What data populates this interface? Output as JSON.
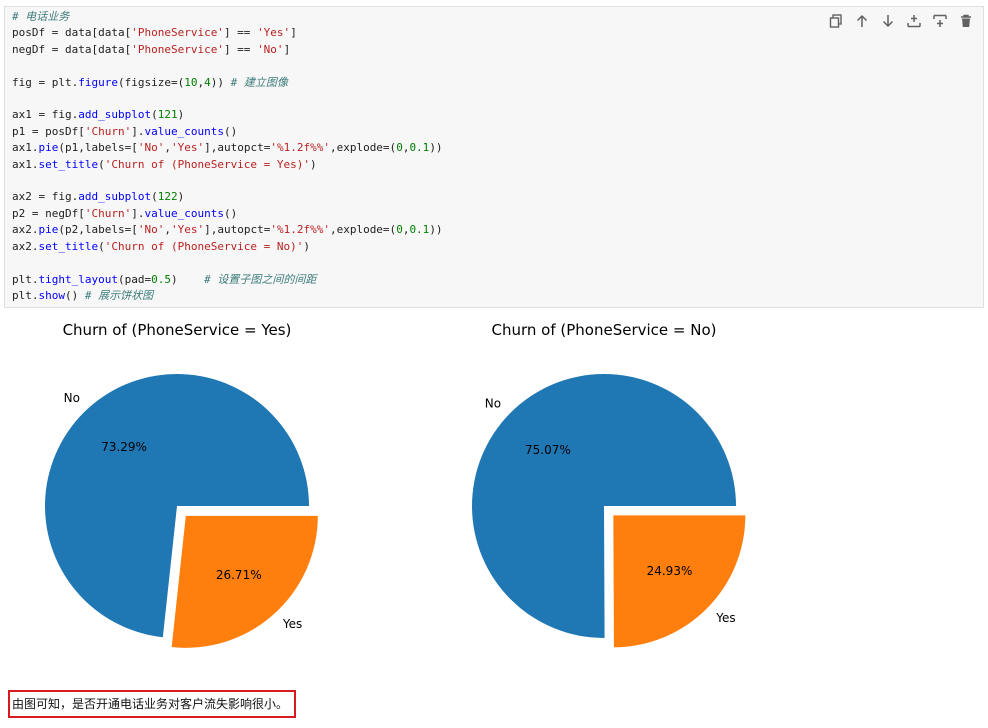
{
  "code_cell": {
    "lines": [
      [
        {
          "t": "# 电话业务",
          "c": "cm"
        }
      ],
      [
        {
          "t": "posDf = data[data["
        },
        {
          "t": "'PhoneService'",
          "c": "st"
        },
        {
          "t": "] == "
        },
        {
          "t": "'Yes'",
          "c": "st"
        },
        {
          "t": "]"
        }
      ],
      [
        {
          "t": "negDf = data[data["
        },
        {
          "t": "'PhoneService'",
          "c": "st"
        },
        {
          "t": "] == "
        },
        {
          "t": "'No'",
          "c": "st"
        },
        {
          "t": "]"
        }
      ],
      [],
      [
        {
          "t": "fig = plt."
        },
        {
          "t": "figure",
          "c": "fn"
        },
        {
          "t": "(figsize=("
        },
        {
          "t": "10",
          "c": "nu"
        },
        {
          "t": ","
        },
        {
          "t": "4",
          "c": "nu"
        },
        {
          "t": ")) "
        },
        {
          "t": "# 建立图像",
          "c": "cm"
        }
      ],
      [],
      [
        {
          "t": "ax1 = fig."
        },
        {
          "t": "add_subplot",
          "c": "fn"
        },
        {
          "t": "("
        },
        {
          "t": "121",
          "c": "nu"
        },
        {
          "t": ")"
        }
      ],
      [
        {
          "t": "p1 = posDf["
        },
        {
          "t": "'Churn'",
          "c": "st"
        },
        {
          "t": "]."
        },
        {
          "t": "value_counts",
          "c": "fn"
        },
        {
          "t": "()"
        }
      ],
      [
        {
          "t": "ax1."
        },
        {
          "t": "pie",
          "c": "fn"
        },
        {
          "t": "(p1,labels=["
        },
        {
          "t": "'No'",
          "c": "st"
        },
        {
          "t": ","
        },
        {
          "t": "'Yes'",
          "c": "st"
        },
        {
          "t": "],autopct="
        },
        {
          "t": "'%1.2f%%'",
          "c": "st"
        },
        {
          "t": ",explode=("
        },
        {
          "t": "0",
          "c": "nu"
        },
        {
          "t": ","
        },
        {
          "t": "0.1",
          "c": "nu"
        },
        {
          "t": "))"
        }
      ],
      [
        {
          "t": "ax1."
        },
        {
          "t": "set_title",
          "c": "fn"
        },
        {
          "t": "("
        },
        {
          "t": "'Churn of (PhoneService = Yes)'",
          "c": "st"
        },
        {
          "t": ")"
        }
      ],
      [],
      [
        {
          "t": "ax2 = fig."
        },
        {
          "t": "add_subplot",
          "c": "fn"
        },
        {
          "t": "("
        },
        {
          "t": "122",
          "c": "nu"
        },
        {
          "t": ")"
        }
      ],
      [
        {
          "t": "p2 = negDf["
        },
        {
          "t": "'Churn'",
          "c": "st"
        },
        {
          "t": "]."
        },
        {
          "t": "value_counts",
          "c": "fn"
        },
        {
          "t": "()"
        }
      ],
      [
        {
          "t": "ax2."
        },
        {
          "t": "pie",
          "c": "fn"
        },
        {
          "t": "(p2,labels=["
        },
        {
          "t": "'No'",
          "c": "st"
        },
        {
          "t": ","
        },
        {
          "t": "'Yes'",
          "c": "st"
        },
        {
          "t": "],autopct="
        },
        {
          "t": "'%1.2f%%'",
          "c": "st"
        },
        {
          "t": ",explode=("
        },
        {
          "t": "0",
          "c": "nu"
        },
        {
          "t": ","
        },
        {
          "t": "0.1",
          "c": "nu"
        },
        {
          "t": "))"
        }
      ],
      [
        {
          "t": "ax2."
        },
        {
          "t": "set_title",
          "c": "fn"
        },
        {
          "t": "("
        },
        {
          "t": "'Churn of (PhoneService = No)'",
          "c": "st"
        },
        {
          "t": ")"
        }
      ],
      [],
      [
        {
          "t": "plt."
        },
        {
          "t": "tight_layout",
          "c": "fn"
        },
        {
          "t": "(pad="
        },
        {
          "t": "0.5",
          "c": "nu"
        },
        {
          "t": ")    "
        },
        {
          "t": "# 设置子图之间的间距",
          "c": "cm"
        }
      ],
      [
        {
          "t": "plt."
        },
        {
          "t": "show",
          "c": "fn"
        },
        {
          "t": "() "
        },
        {
          "t": "# 展示饼状图",
          "c": "cm"
        }
      ]
    ]
  },
  "toolbar_icons": [
    "duplicate-icon",
    "move-up-icon",
    "move-down-icon",
    "insert-above-icon",
    "insert-below-icon",
    "delete-icon"
  ],
  "chart_data": [
    {
      "type": "pie",
      "title": "Churn of (PhoneService = Yes)",
      "labels": [
        "No",
        "Yes"
      ],
      "values": [
        73.29,
        26.71
      ],
      "value_labels": [
        "73.29%",
        "26.71%"
      ],
      "explode": [
        0,
        0.1
      ],
      "colors": [
        "#1f77b4",
        "#ff7f0e"
      ]
    },
    {
      "type": "pie",
      "title": "Churn of (PhoneService = No)",
      "labels": [
        "No",
        "Yes"
      ],
      "values": [
        75.07,
        24.93
      ],
      "value_labels": [
        "75.07%",
        "24.93%"
      ],
      "explode": [
        0,
        0.1
      ],
      "colors": [
        "#1f77b4",
        "#ff7f0e"
      ]
    }
  ],
  "note": {
    "text": "由图可知，是否开通电话业务对客户流失影响很小。",
    "border_color": "#d61c1c"
  }
}
